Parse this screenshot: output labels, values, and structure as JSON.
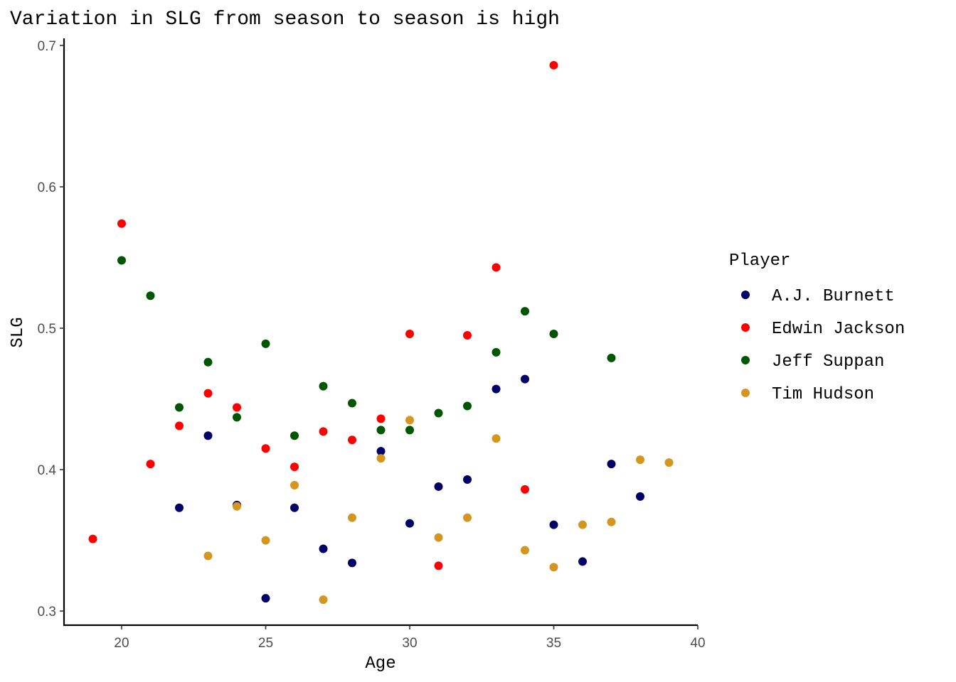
{
  "chart_data": {
    "type": "scatter",
    "title": "Variation in SLG from season to season is high",
    "xlabel": "Age",
    "ylabel": "SLG",
    "xlim": [
      18,
      40
    ],
    "ylim": [
      0.29,
      0.705
    ],
    "xticks": [
      20,
      25,
      30,
      35,
      40
    ],
    "yticks": [
      0.3,
      0.4,
      0.5,
      0.6,
      0.7
    ],
    "grid": false,
    "legend": {
      "title": "Player",
      "placement": "right"
    },
    "series": [
      {
        "name": "A.J. Burnett",
        "color": "#000066",
        "points": [
          [
            22,
            0.373
          ],
          [
            23,
            0.424
          ],
          [
            24,
            0.375
          ],
          [
            25,
            0.309
          ],
          [
            26,
            0.373
          ],
          [
            27,
            0.344
          ],
          [
            28,
            0.334
          ],
          [
            29,
            0.413
          ],
          [
            30,
            0.362
          ],
          [
            31,
            0.388
          ],
          [
            32,
            0.393
          ],
          [
            33,
            0.457
          ],
          [
            34,
            0.464
          ],
          [
            35,
            0.361
          ],
          [
            36,
            0.335
          ],
          [
            37,
            0.404
          ],
          [
            38,
            0.381
          ]
        ]
      },
      {
        "name": "Edwin Jackson",
        "color": "#ff0000",
        "points": [
          [
            19,
            0.351
          ],
          [
            20,
            0.574
          ],
          [
            21,
            0.404
          ],
          [
            22,
            0.431
          ],
          [
            23,
            0.454
          ],
          [
            24,
            0.444
          ],
          [
            25,
            0.415
          ],
          [
            26,
            0.402
          ],
          [
            27,
            0.427
          ],
          [
            28,
            0.421
          ],
          [
            29,
            0.436
          ],
          [
            30,
            0.496
          ],
          [
            31,
            0.332
          ],
          [
            32,
            0.495
          ],
          [
            33,
            0.543
          ],
          [
            34,
            0.386
          ],
          [
            35,
            0.686
          ]
        ]
      },
      {
        "name": "Jeff Suppan",
        "color": "#005500",
        "points": [
          [
            20,
            0.548
          ],
          [
            21,
            0.523
          ],
          [
            22,
            0.444
          ],
          [
            23,
            0.476
          ],
          [
            24,
            0.437
          ],
          [
            25,
            0.489
          ],
          [
            26,
            0.424
          ],
          [
            27,
            0.459
          ],
          [
            28,
            0.447
          ],
          [
            29,
            0.428
          ],
          [
            30,
            0.428
          ],
          [
            31,
            0.44
          ],
          [
            32,
            0.445
          ],
          [
            33,
            0.483
          ],
          [
            34,
            0.512
          ],
          [
            35,
            0.496
          ],
          [
            37,
            0.479
          ]
        ]
      },
      {
        "name": "Tim Hudson",
        "color": "#d4961f",
        "points": [
          [
            23,
            0.339
          ],
          [
            24,
            0.374
          ],
          [
            25,
            0.35
          ],
          [
            26,
            0.389
          ],
          [
            27,
            0.308
          ],
          [
            28,
            0.366
          ],
          [
            29,
            0.408
          ],
          [
            30,
            0.435
          ],
          [
            31,
            0.352
          ],
          [
            32,
            0.366
          ],
          [
            33,
            0.422
          ],
          [
            34,
            0.343
          ],
          [
            35,
            0.331
          ],
          [
            36,
            0.361
          ],
          [
            37,
            0.363
          ],
          [
            38,
            0.407
          ],
          [
            39,
            0.405
          ]
        ]
      }
    ]
  }
}
